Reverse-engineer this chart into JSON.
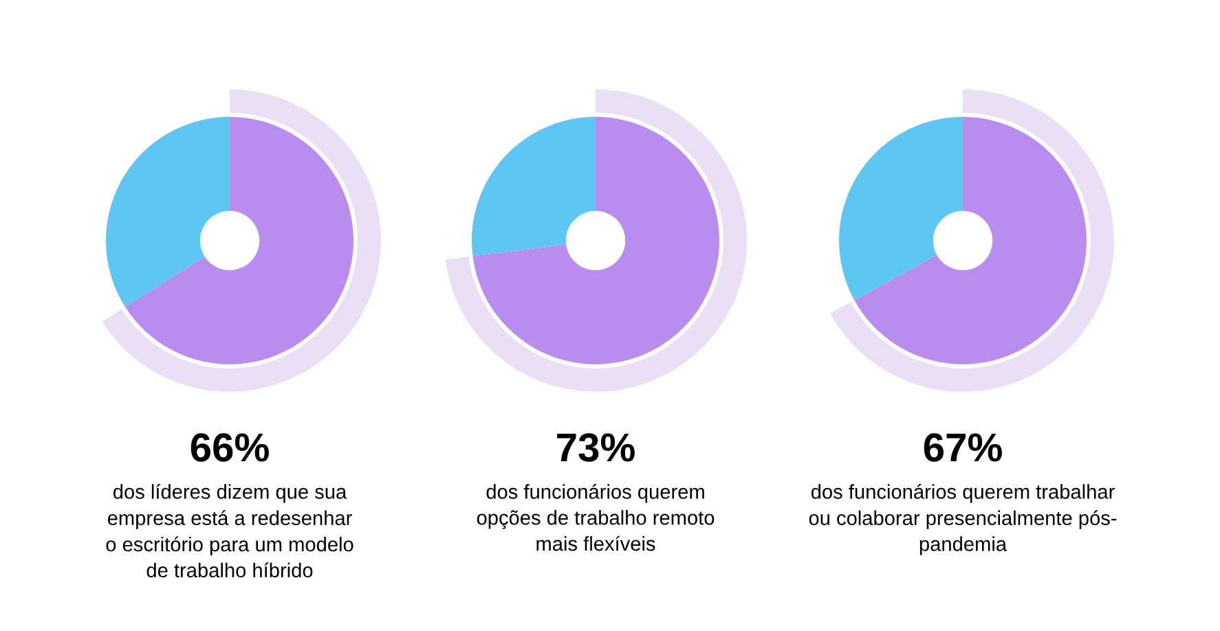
{
  "chart_data": [
    {
      "type": "donut",
      "title": "66%",
      "categories": [
        null,
        null
      ],
      "values": [
        66,
        34
      ],
      "colors": [
        "#b98cf0",
        "#5ec6f2"
      ],
      "annotations": [
        "dos líderes dizem que sua\nempresa está a redesenhar\no escritório para um modelo\nde trabalho híbrido"
      ]
    },
    {
      "type": "donut",
      "title": "73%",
      "categories": [
        null,
        null
      ],
      "values": [
        73,
        27
      ],
      "colors": [
        "#b98cf0",
        "#5ec6f2"
      ],
      "annotations": [
        "dos funcionários querem\nopções de trabalho remoto\nmais flexíveis"
      ]
    },
    {
      "type": "donut",
      "title": "67%",
      "categories": [
        null,
        null
      ],
      "values": [
        67,
        33
      ],
      "colors": [
        "#b98cf0",
        "#5ec6f2"
      ],
      "annotations": [
        "dos funcionários querem trabalhar\nou colaborar presencialmente pós-\npandemia"
      ]
    }
  ]
}
